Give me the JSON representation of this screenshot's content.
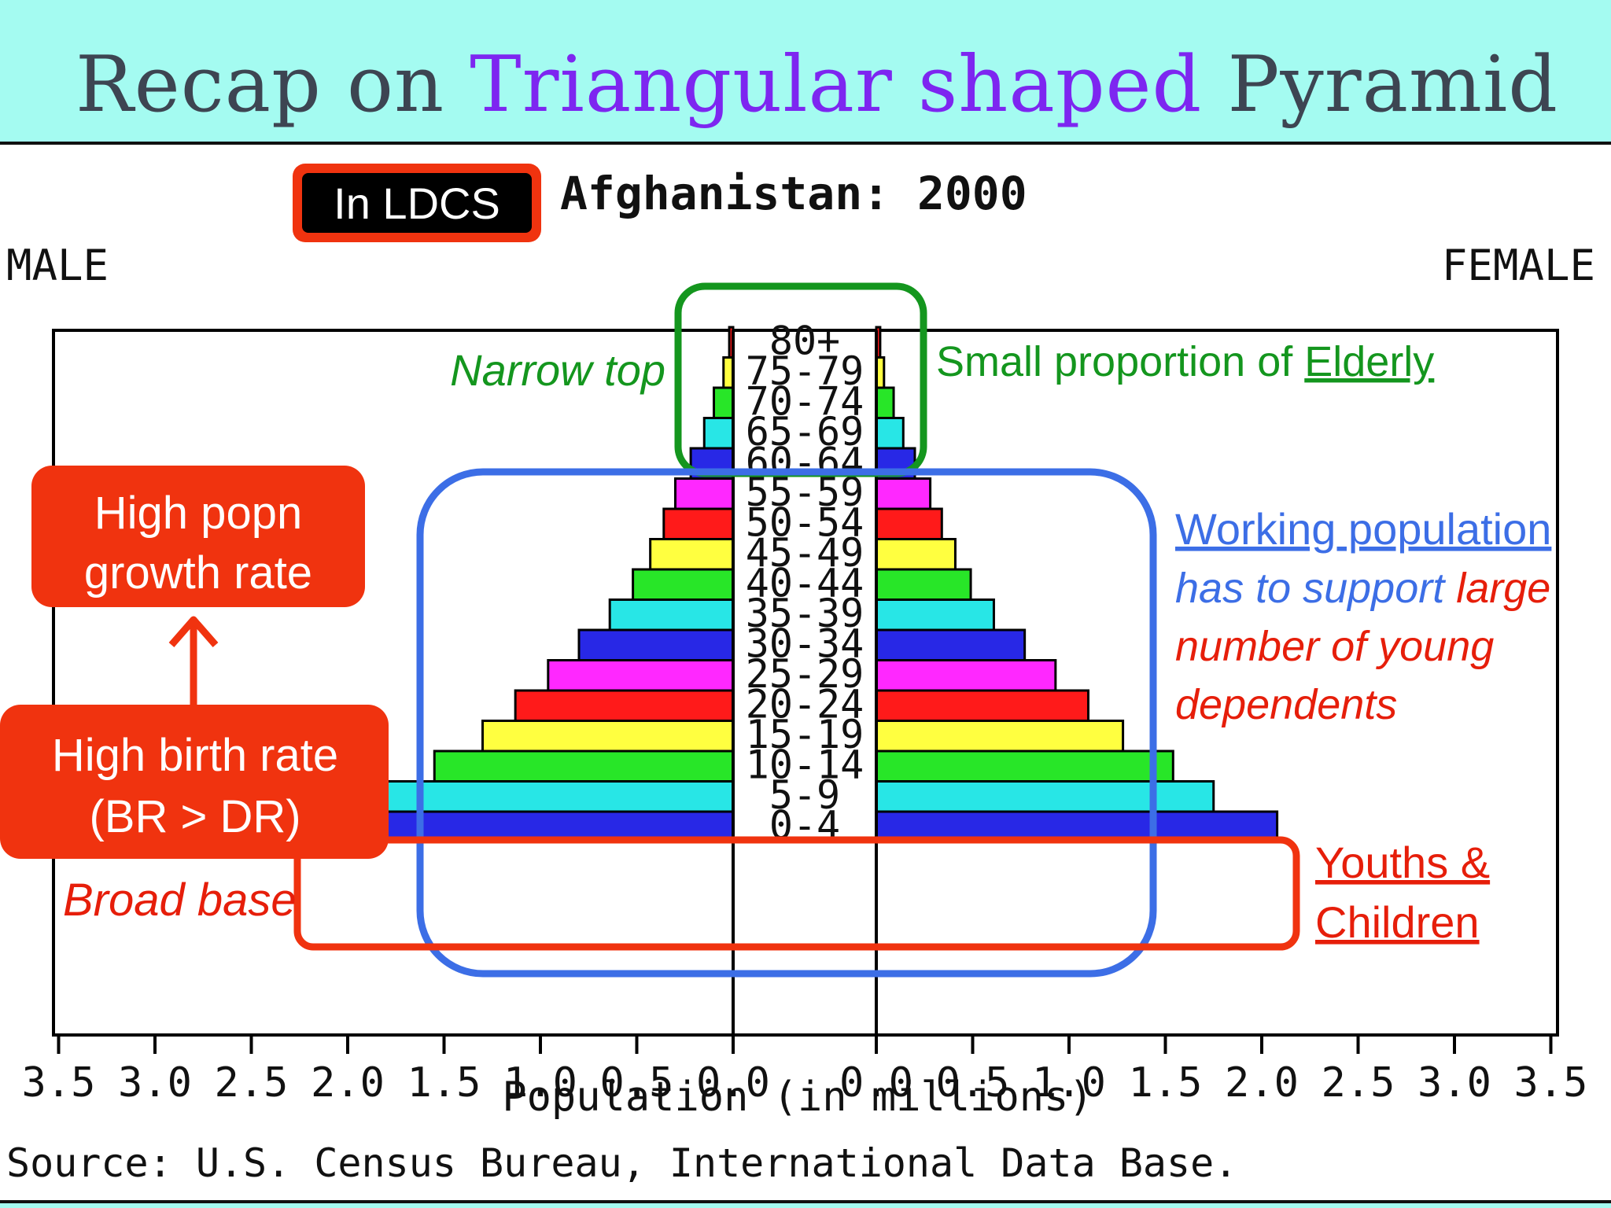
{
  "slide": {
    "title_prefix": "Recap on",
    "title_accent": "Triangular shaped",
    "title_suffix": "Pyramid"
  },
  "colors": {
    "background": "#a4fbf1",
    "title_accent": "#7d26f0",
    "annotation_red": "#e61e0a",
    "annotation_green": "#14961e",
    "annotation_blue": "#3c6ee6",
    "box_red": "#f0330f"
  },
  "chart_data": {
    "type": "bar",
    "orientation": "horizontal-pyramid",
    "title": "Afghanistan: 2000",
    "left_label": "MALE",
    "right_label": "FEMALE",
    "xlabel": "Population (in millions)",
    "source": "Source: U.S. Census Bureau, International Data Base.",
    "x_ticks": [
      "3.5",
      "3.0",
      "2.5",
      "2.0",
      "1.5",
      "1.0",
      "0.5",
      "0.0"
    ],
    "xlim": [
      0,
      3.5
    ],
    "age_groups": [
      "80+",
      "75-79",
      "70-74",
      "65-69",
      "60-64",
      "55-59",
      "50-54",
      "45-49",
      "40-44",
      "35-39",
      "30-34",
      "25-29",
      "20-24",
      "15-19",
      "10-14",
      "5-9",
      "0-4"
    ],
    "bar_colors": [
      "#ff1a1a",
      "#ffff40",
      "#28e628",
      "#28e6e6",
      "#2828e6",
      "#ff28ff",
      "#ff1a1a",
      "#ffff40",
      "#28e628",
      "#28e6e6",
      "#2828e6",
      "#ff28ff",
      "#ff1a1a",
      "#ffff40",
      "#28e628",
      "#28e6e6",
      "#2828e6"
    ],
    "series": [
      {
        "name": "MALE",
        "values": [
          0.02,
          0.05,
          0.1,
          0.15,
          0.22,
          0.3,
          0.36,
          0.43,
          0.52,
          0.64,
          0.8,
          0.96,
          1.13,
          1.3,
          1.55,
          1.87,
          2.18
        ]
      },
      {
        "name": "FEMALE",
        "values": [
          0.02,
          0.04,
          0.09,
          0.14,
          0.2,
          0.28,
          0.34,
          0.41,
          0.49,
          0.61,
          0.77,
          0.93,
          1.1,
          1.28,
          1.54,
          1.75,
          2.08
        ]
      }
    ]
  },
  "annotations": {
    "ldcs_badge": "In LDCS",
    "narrow_top": "Narrow top",
    "elderly_prefix": "Small proportion of",
    "elderly_link": "Elderly",
    "working_link": "Working population",
    "working_line2_blue": "has to support",
    "working_line2_red": "large",
    "working_line3": "number of young",
    "working_line4": "dependents",
    "growth_line1": "High popn",
    "growth_line2": "growth rate",
    "birth_line1": "High birth rate",
    "birth_line2": "(BR > DR)",
    "broad_base": "Broad base",
    "youth_line1": "Youths &",
    "youth_line2": "Children"
  }
}
